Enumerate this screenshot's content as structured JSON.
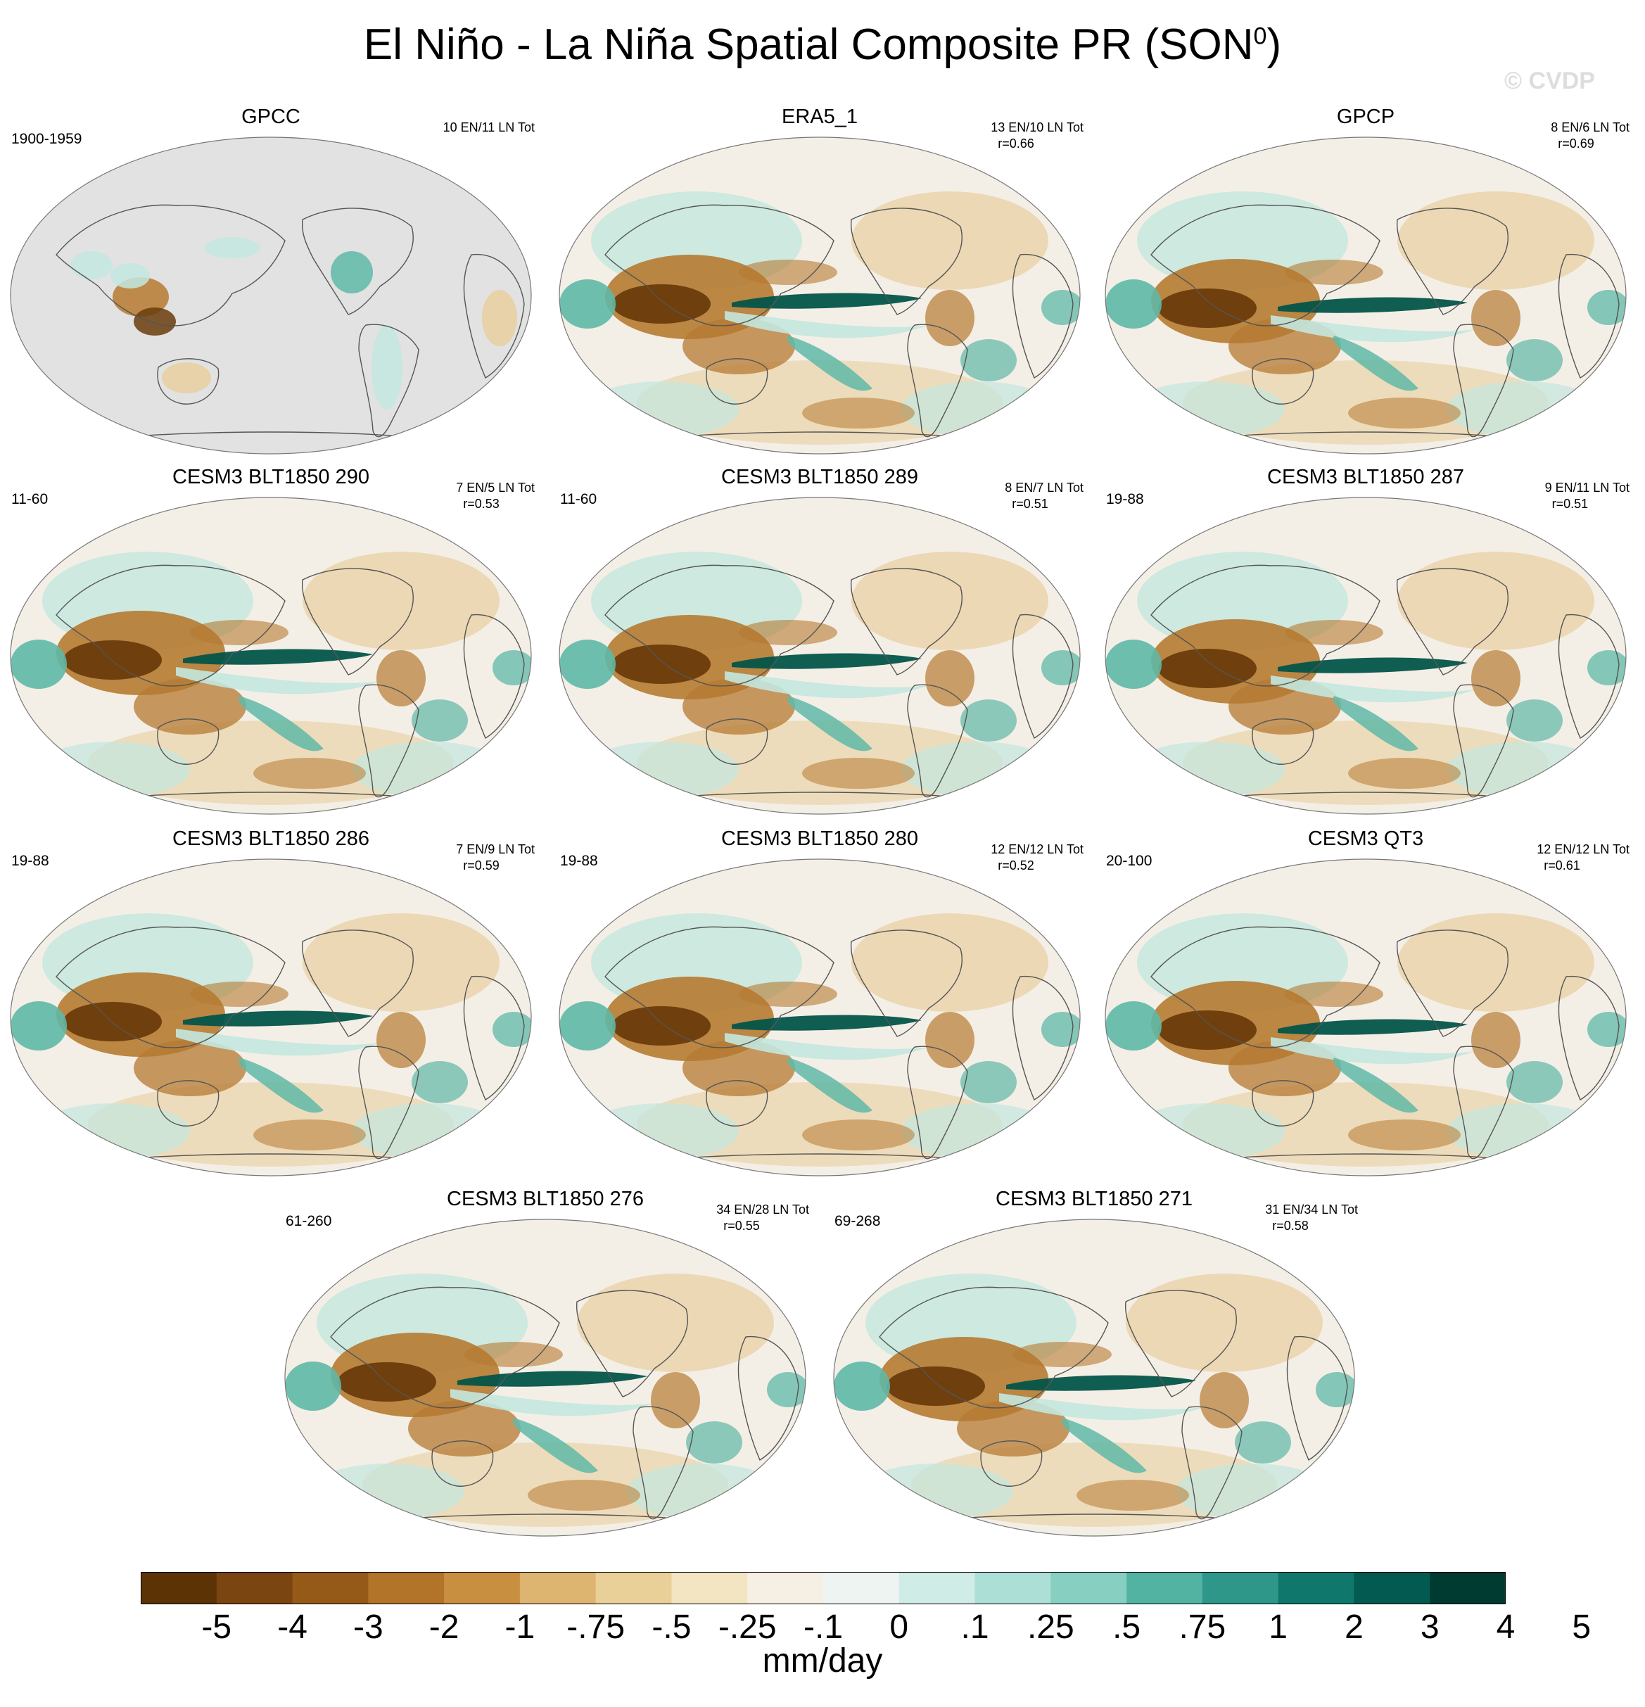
{
  "figure": {
    "title_main": "El Niño - La Niña Spatial Composite PR (SON",
    "title_sup": "0",
    "title_end": ")",
    "watermark": "© CVDP"
  },
  "panels": [
    {
      "name": "GPCC",
      "period": "1900-1959",
      "counts": "10 EN/11 LN Tot",
      "r": "",
      "land_only": true
    },
    {
      "name": "ERA5_1",
      "period": "",
      "counts": "13 EN/10 LN Tot",
      "r": "r=0.66",
      "land_only": false
    },
    {
      "name": "GPCP",
      "period": "",
      "counts": "8 EN/6 LN Tot",
      "r": "r=0.69",
      "land_only": false
    },
    {
      "name": "CESM3 BLT1850 290",
      "period": "11-60",
      "counts": "7 EN/5 LN Tot",
      "r": "r=0.53",
      "land_only": false
    },
    {
      "name": "CESM3 BLT1850 289",
      "period": "11-60",
      "counts": "8 EN/7 LN Tot",
      "r": "r=0.51",
      "land_only": false
    },
    {
      "name": "CESM3 BLT1850 287",
      "period": "19-88",
      "counts": "9 EN/11 LN Tot",
      "r": "r=0.51",
      "land_only": false
    },
    {
      "name": "CESM3 BLT1850 286",
      "period": "19-88",
      "counts": "7 EN/9 LN Tot",
      "r": "r=0.59",
      "land_only": false
    },
    {
      "name": "CESM3 BLT1850 280",
      "period": "19-88",
      "counts": "12 EN/12 LN Tot",
      "r": "r=0.52",
      "land_only": false
    },
    {
      "name": "CESM3 QT3",
      "period": "20-100",
      "counts": "12 EN/12 LN Tot",
      "r": "r=0.61",
      "land_only": false
    },
    {
      "name": "CESM3 BLT1850 276",
      "period": "61-260",
      "counts": "34 EN/28 LN Tot",
      "r": "r=0.55",
      "land_only": false
    },
    {
      "name": "CESM3 BLT1850 271",
      "period": "69-268",
      "counts": "31 EN/34 LN Tot",
      "r": "r=0.58",
      "land_only": false
    }
  ],
  "colorbar": {
    "unit": "mm/day",
    "tick_labels": [
      "-5",
      "-4",
      "-3",
      "-2",
      "-1",
      "-.75",
      "-.5",
      "-.25",
      "-.1",
      "0",
      ".1",
      ".25",
      ".5",
      ".75",
      "1",
      "2",
      "3",
      "4",
      "5"
    ],
    "colors": [
      "#5b3305",
      "#7a4510",
      "#955a18",
      "#b17428",
      "#c98f40",
      "#ddb470",
      "#e9cf98",
      "#f3e4c2",
      "#f6efe4",
      "#eef4f2",
      "#cfece6",
      "#acdfd5",
      "#86cfc1",
      "#53b3a2",
      "#2e978a",
      "#10776c",
      "#035a50",
      "#003b31"
    ]
  },
  "palette": {
    "dry_strong": "#6a3c0c",
    "dry_mid": "#b67a31",
    "dry_light": "#e8cf9f",
    "neutral": "#f4efe6",
    "wet_light": "#c3e7df",
    "wet_mid": "#5fb8a7",
    "wet_strong": "#03544a",
    "gpcc_mask": "#e2e2e2"
  }
}
